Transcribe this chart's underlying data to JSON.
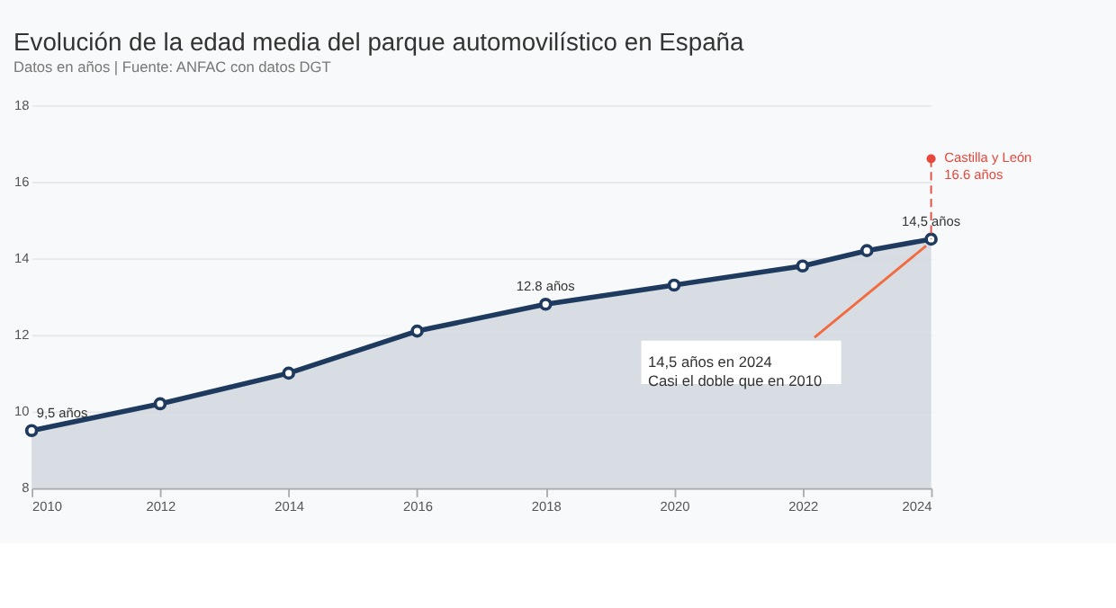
{
  "chart_data": {
    "type": "area",
    "title": "Evolución de la edad media del parque automovilístico en España",
    "subtitle": "Datos en años | Fuente: ANFAC con datos DGT",
    "x": [
      2010,
      2012,
      2014,
      2016,
      2018,
      2020,
      2022,
      2023,
      2024
    ],
    "series": [
      {
        "color": "#1f3a5f",
        "values": [
          9.5,
          10.2,
          11.0,
          12.1,
          12.8,
          13.3,
          13.8,
          14.2,
          14.5
        ],
        "value_labels": [
          "9,5 años",
          null,
          null,
          null,
          "12.8 años",
          null,
          null,
          null,
          "14,5 años"
        ]
      },
      {
        "type": "scatter",
        "x": [
          2024
        ],
        "color": "#e8473c",
        "values": [
          16.6
        ],
        "value_labels": [
          "Castilla y León\n16.6 años"
        ],
        "line_style": "dashed"
      }
    ],
    "annotations": [
      {
        "text": "14,5 años en 2024\nCasi el doble que en 2010",
        "x": 2024,
        "y": 14.5
      }
    ],
    "xlim": [
      2010,
      2024
    ],
    "xticks": [
      2010,
      2012,
      2014,
      2016,
      2018,
      2020,
      2022,
      2024
    ],
    "ylim": [
      8,
      18
    ],
    "yticks": [
      8,
      10,
      12,
      14,
      16,
      18
    ],
    "grid": "y",
    "marker": "circle"
  }
}
